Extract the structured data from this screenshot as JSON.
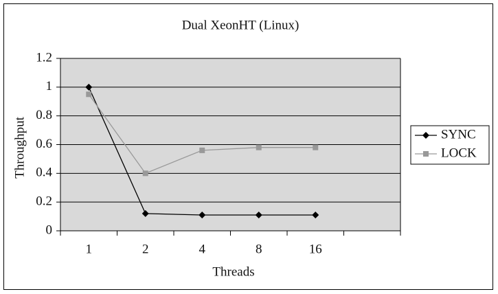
{
  "chart_data": {
    "type": "line",
    "title": "Dual XeonHT (Linux)",
    "x_label": "Threads",
    "y_label": "Throughput",
    "categories": [
      "1",
      "2",
      "4",
      "8",
      "16",
      null
    ],
    "series": [
      {
        "name": "SYNC",
        "color": "#000000",
        "marker": "diamond",
        "values": [
          1.0,
          0.12,
          0.11,
          0.11,
          0.11,
          null
        ]
      },
      {
        "name": "LOCK",
        "color": "#999999",
        "marker": "square",
        "values": [
          0.95,
          0.4,
          0.56,
          0.58,
          0.58,
          null
        ]
      }
    ],
    "ylim": [
      0,
      1.2
    ],
    "yticks": [
      0,
      0.2,
      0.4,
      0.6,
      0.8,
      1,
      1.2
    ],
    "grid": true,
    "legend": "right"
  }
}
